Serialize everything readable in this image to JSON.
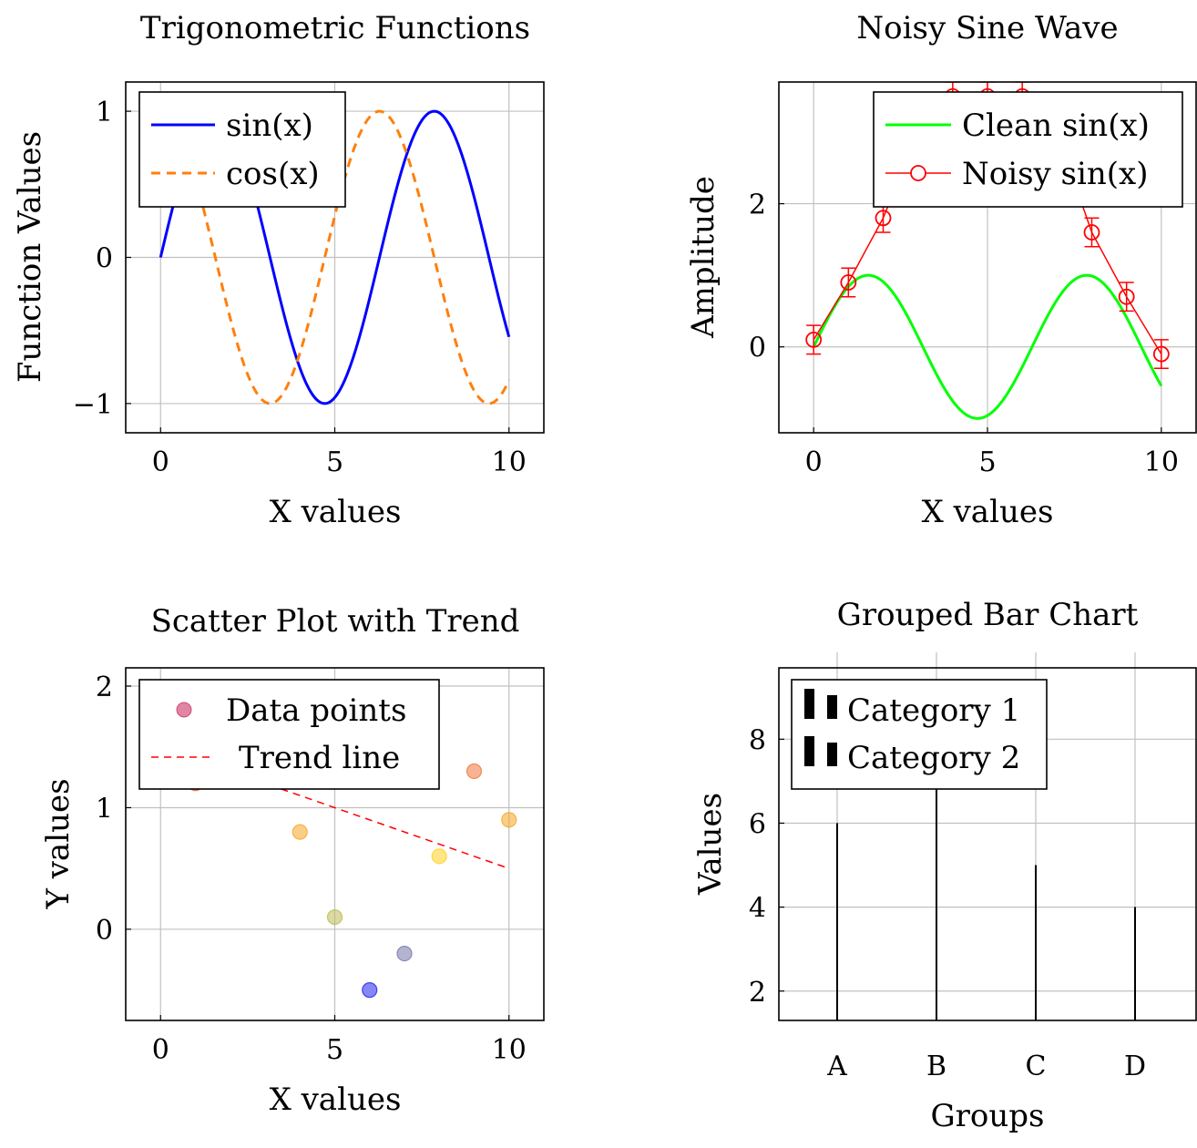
{
  "chart_data": [
    {
      "type": "line",
      "title": "Trigonometric Functions",
      "xlabel": "X values",
      "ylabel": "Function Values",
      "xlim": [
        -1,
        11
      ],
      "ylim": [
        -1.2,
        1.2
      ],
      "xticks": [
        0,
        5,
        10
      ],
      "yticks": [
        -1,
        0,
        1
      ],
      "xtick_labels": [
        "0",
        "5",
        "10"
      ],
      "ytick_labels": [
        "−1",
        "0",
        "1"
      ],
      "grid": true,
      "legend_position": "top-left",
      "series": [
        {
          "name": "sin(x)",
          "function": "sin",
          "x_range": [
            0,
            10
          ],
          "color": "#0000ff",
          "style": "solid"
        },
        {
          "name": "cos(x)",
          "function": "cos",
          "x_range": [
            0,
            10
          ],
          "color": "#ff7f0e",
          "style": "dashed"
        }
      ]
    },
    {
      "type": "line",
      "title": "Noisy Sine Wave",
      "xlabel": "X values",
      "ylabel": "Amplitude",
      "xlim": [
        -1,
        11
      ],
      "ylim": [
        -1.2,
        3.7
      ],
      "xticks": [
        0,
        5,
        10
      ],
      "yticks": [
        0,
        2
      ],
      "xtick_labels": [
        "0",
        "5",
        "10"
      ],
      "ytick_labels": [
        "0",
        "2"
      ],
      "grid": true,
      "legend_position": "top-right",
      "series": [
        {
          "name": "Clean sin(x)",
          "function": "sin",
          "x_range": [
            0,
            10
          ],
          "color": "#00ff00",
          "style": "solid"
        },
        {
          "name": "Noisy sin(x)",
          "color": "#ff0000",
          "style": "solid-marker-circle",
          "x": [
            0,
            1,
            2,
            3,
            4,
            5,
            6,
            7,
            8,
            9,
            10
          ],
          "y": [
            0.1,
            0.9,
            1.8,
            3.0,
            3.5,
            3.5,
            3.5,
            3.0,
            1.6,
            0.7,
            -0.1
          ],
          "error": 0.2
        }
      ]
    },
    {
      "type": "scatter",
      "title": "Scatter Plot with Trend",
      "xlabel": "X values",
      "ylabel": "Y values",
      "xlim": [
        -1,
        11
      ],
      "ylim": [
        -0.75,
        2.15
      ],
      "xticks": [
        0,
        5,
        10
      ],
      "yticks": [
        0,
        1,
        2
      ],
      "xtick_labels": [
        "0",
        "5",
        "10"
      ],
      "ytick_labels": [
        "0",
        "1",
        "2"
      ],
      "grid": true,
      "legend_position": "top",
      "series": [
        {
          "name": "Data points",
          "legend_color": "#cc3366",
          "x": [
            0,
            1,
            2,
            3,
            4,
            5,
            6,
            7,
            8,
            9,
            10
          ],
          "y": [
            1.5,
            1.2,
            1.6,
            1.4,
            0.8,
            0.1,
            -0.5,
            -0.2,
            0.6,
            1.3,
            0.9
          ],
          "colors": [
            "#cc3366",
            "#ee6633",
            "#cc3366",
            "#ee6633",
            "#f5a623",
            "#bbbb55",
            "#2222ee",
            "#7777aa",
            "#ffd21f",
            "#f2743d",
            "#f5a623"
          ]
        },
        {
          "name": "Trend line",
          "color": "#ff0000",
          "style": "dashed",
          "x": [
            0,
            10
          ],
          "y": [
            1.5,
            0.5
          ]
        }
      ]
    },
    {
      "type": "bar",
      "title": "Grouped Bar Chart",
      "xlabel": "Groups",
      "ylabel": "Values",
      "categories": [
        "A",
        "B",
        "C",
        "D"
      ],
      "ylim": [
        1.3,
        9.7
      ],
      "yticks": [
        2,
        4,
        6,
        8
      ],
      "ytick_labels": [
        "2",
        "4",
        "6",
        "8"
      ],
      "grid": true,
      "legend_position": "top-left",
      "series": [
        {
          "name": "Category 1",
          "values": [
            6,
            7,
            5,
            4
          ]
        },
        {
          "name": "Category 2",
          "values": [
            6,
            7,
            5,
            4
          ]
        }
      ]
    }
  ]
}
